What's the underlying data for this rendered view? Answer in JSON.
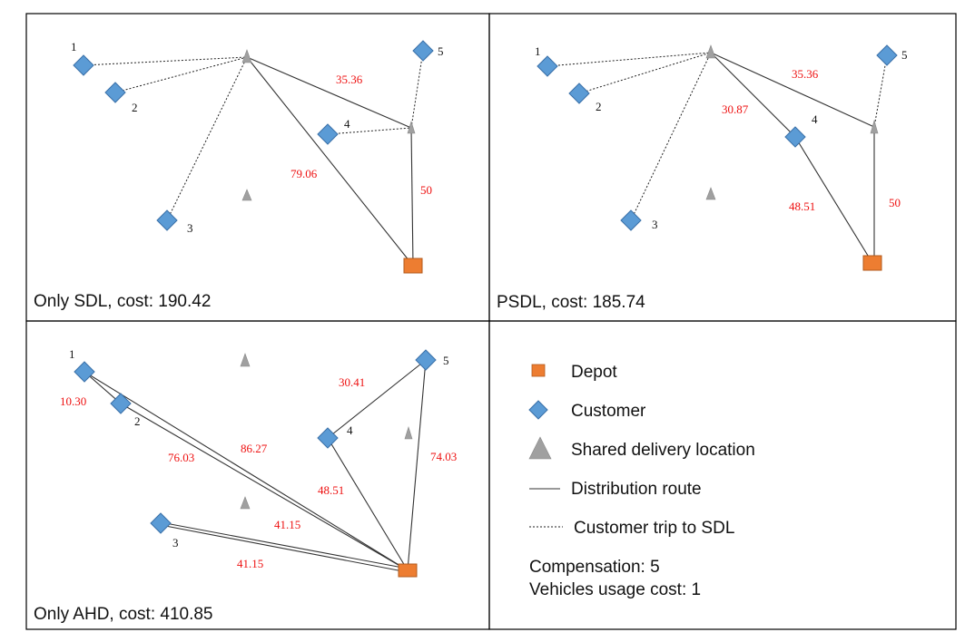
{
  "colors": {
    "depot": "#ED7D31",
    "depot_stroke": "#B25A1C",
    "customer": "#5B9BD5",
    "customer_stroke": "#3A70A8",
    "sdl": "#A0A0A0",
    "cost_label": "#EE1111"
  },
  "panels": [
    {
      "id": "only-sdl",
      "caption": "Only SDL, cost: 190.42",
      "customers": [
        {
          "label": "1"
        },
        {
          "label": "2"
        },
        {
          "label": "3"
        },
        {
          "label": "4"
        },
        {
          "label": "5"
        }
      ],
      "route_costs": [
        "35.36",
        "79.06",
        "50"
      ]
    },
    {
      "id": "psdl",
      "caption": "PSDL, cost: 185.74",
      "customers": [
        {
          "label": "1"
        },
        {
          "label": "2"
        },
        {
          "label": "3"
        },
        {
          "label": "4"
        },
        {
          "label": "5"
        }
      ],
      "route_costs": [
        "35.36",
        "30.87",
        "48.51",
        "50"
      ]
    },
    {
      "id": "only-ahd",
      "caption": "Only AHD, cost: 410.85",
      "customers": [
        {
          "label": "1"
        },
        {
          "label": "2"
        },
        {
          "label": "3"
        },
        {
          "label": "4"
        },
        {
          "label": "5"
        }
      ],
      "route_costs": [
        "10.30",
        "76.03",
        "86.27",
        "30.41",
        "48.51",
        "74.03",
        "41.15",
        "41.15"
      ]
    }
  ],
  "legend": {
    "items": [
      {
        "icon": "depot-square-icon",
        "label": "Depot"
      },
      {
        "icon": "customer-diamond-icon",
        "label": "Customer"
      },
      {
        "icon": "sdl-triangle-icon",
        "label": "Shared delivery location"
      },
      {
        "icon": "solid-line-icon",
        "label": "Distribution route"
      },
      {
        "icon": "dotted-line-icon",
        "label": "Customer trip to SDL"
      }
    ],
    "notes": [
      "Compensation: 5",
      "Vehicles usage cost: 1"
    ]
  }
}
